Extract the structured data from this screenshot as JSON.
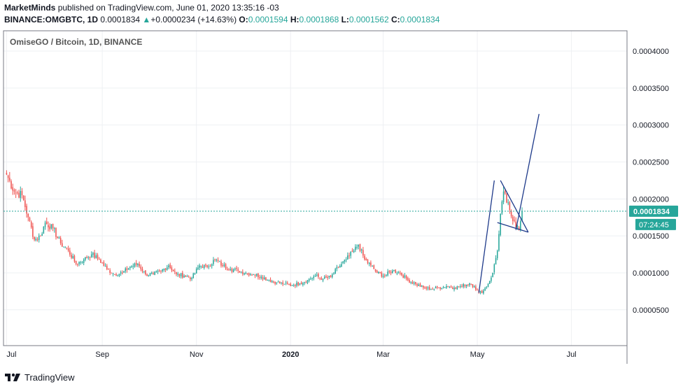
{
  "header": {
    "author": "MarketMinds",
    "published_text": "published on TradingView.com, June 01, 2020 13:35:16 -03",
    "symbol": "BINANCE:OMGBTC, 1D",
    "last": "0.0001834",
    "change_arrow": "▲",
    "change": "+0.0000234 (+14.63%)",
    "open_label": "O:",
    "open": "0.0001594",
    "high_label": "H:",
    "high": "0.0001868",
    "low_label": "L:",
    "low": "0.0001562",
    "close_label": "C:",
    "close": "0.0001834"
  },
  "footer": {
    "brand": "TradingView",
    "logo_icon": "tradingview-logo-icon"
  },
  "colors": {
    "up": "#26a69a",
    "down": "#ef5350",
    "price_tag": "#26a69a",
    "trendline": "#1e3a8a",
    "grid": "#eef0f3"
  },
  "chart_data": {
    "type": "candlestick",
    "title": "OmiseGO / Bitcoin, 1D, BINANCE",
    "x_ticks": [
      {
        "label": "Jul",
        "day": 0
      },
      {
        "label": "Sep",
        "day": 62
      },
      {
        "label": "Nov",
        "day": 123
      },
      {
        "label": "2020",
        "day": 184
      },
      {
        "label": "Mar",
        "day": 244
      },
      {
        "label": "May",
        "day": 305
      },
      {
        "label": "Jul",
        "day": 366
      }
    ],
    "y_ticks": [
      "0.0004000",
      "0.0003500",
      "0.0003000",
      "0.0002500",
      "0.0002000",
      "0.0001500",
      "0.0001000",
      "0.0000500"
    ],
    "y_tick_values": [
      0.0004,
      0.00035,
      0.0003,
      0.00025,
      0.0002,
      0.00015,
      0.0001,
      5e-05
    ],
    "ylim": [
      1.5e-06,
      0.0004275
    ],
    "xlim_days": [
      -2,
      402
    ],
    "last_price_label": "0.0001834",
    "last_price": 0.0001834,
    "countdown": "07:24:45",
    "series_close_keypoints": [
      {
        "day": 0,
        "close": 0.000233
      },
      {
        "day": 5,
        "close": 0.00021
      },
      {
        "day": 10,
        "close": 0.000205
      },
      {
        "day": 14,
        "close": 0.000175
      },
      {
        "day": 18,
        "close": 0.000145
      },
      {
        "day": 22,
        "close": 0.00015
      },
      {
        "day": 25,
        "close": 0.000168
      },
      {
        "day": 30,
        "close": 0.00016
      },
      {
        "day": 35,
        "close": 0.00014
      },
      {
        "day": 40,
        "close": 0.00013
      },
      {
        "day": 45,
        "close": 0.000112
      },
      {
        "day": 50,
        "close": 0.000118
      },
      {
        "day": 55,
        "close": 0.000125
      },
      {
        "day": 60,
        "close": 0.000118
      },
      {
        "day": 65,
        "close": 0.000105
      },
      {
        "day": 70,
        "close": 9.8e-05
      },
      {
        "day": 75,
        "close": 0.0001
      },
      {
        "day": 80,
        "close": 0.000108
      },
      {
        "day": 85,
        "close": 0.000112
      },
      {
        "day": 90,
        "close": 9.8e-05
      },
      {
        "day": 95,
        "close": 9.8e-05
      },
      {
        "day": 100,
        "close": 0.000102
      },
      {
        "day": 105,
        "close": 0.00011
      },
      {
        "day": 110,
        "close": 9.8e-05
      },
      {
        "day": 115,
        "close": 9.6e-05
      },
      {
        "day": 120,
        "close": 9.3e-05
      },
      {
        "day": 125,
        "close": 0.00011
      },
      {
        "day": 130,
        "close": 0.000108
      },
      {
        "day": 135,
        "close": 0.000118
      },
      {
        "day": 140,
        "close": 0.00011
      },
      {
        "day": 145,
        "close": 0.000105
      },
      {
        "day": 150,
        "close": 0.000103
      },
      {
        "day": 155,
        "close": 0.0001
      },
      {
        "day": 160,
        "close": 9.8e-05
      },
      {
        "day": 165,
        "close": 9.5e-05
      },
      {
        "day": 170,
        "close": 9e-05
      },
      {
        "day": 175,
        "close": 8.7e-05
      },
      {
        "day": 180,
        "close": 8.5e-05
      },
      {
        "day": 185,
        "close": 8.3e-05
      },
      {
        "day": 190,
        "close": 8.6e-05
      },
      {
        "day": 195,
        "close": 9e-05
      },
      {
        "day": 200,
        "close": 9.6e-05
      },
      {
        "day": 205,
        "close": 9.2e-05
      },
      {
        "day": 210,
        "close": 9.4e-05
      },
      {
        "day": 215,
        "close": 0.000108
      },
      {
        "day": 220,
        "close": 0.000118
      },
      {
        "day": 225,
        "close": 0.00013
      },
      {
        "day": 228,
        "close": 0.000138
      },
      {
        "day": 232,
        "close": 0.000118
      },
      {
        "day": 236,
        "close": 0.00011
      },
      {
        "day": 240,
        "close": 0.0001
      },
      {
        "day": 245,
        "close": 9.6e-05
      },
      {
        "day": 250,
        "close": 0.000103
      },
      {
        "day": 255,
        "close": 0.0001
      },
      {
        "day": 260,
        "close": 9e-05
      },
      {
        "day": 265,
        "close": 8.5e-05
      },
      {
        "day": 270,
        "close": 8e-05
      },
      {
        "day": 275,
        "close": 7.8e-05
      },
      {
        "day": 280,
        "close": 8e-05
      },
      {
        "day": 285,
        "close": 8.2e-05
      },
      {
        "day": 290,
        "close": 8e-05
      },
      {
        "day": 295,
        "close": 8.2e-05
      },
      {
        "day": 300,
        "close": 8.6e-05
      },
      {
        "day": 303,
        "close": 8.2e-05
      },
      {
        "day": 306,
        "close": 7.3e-05
      },
      {
        "day": 309,
        "close": 7.6e-05
      },
      {
        "day": 312,
        "close": 8.5e-05
      },
      {
        "day": 315,
        "close": 0.0001
      },
      {
        "day": 318,
        "close": 0.00013
      },
      {
        "day": 320,
        "close": 0.00018
      },
      {
        "day": 322,
        "close": 0.00021
      },
      {
        "day": 324,
        "close": 0.000195
      },
      {
        "day": 326,
        "close": 0.000185
      },
      {
        "day": 328,
        "close": 0.00017
      },
      {
        "day": 330,
        "close": 0.000162
      },
      {
        "day": 332,
        "close": 0.000158
      },
      {
        "day": 333,
        "close": 0.00017
      },
      {
        "day": 334,
        "close": 0.0001834
      }
    ],
    "trendlines": [
      {
        "from": {
          "day": 306,
          "price": 7.3e-05
        },
        "to": {
          "day": 316,
          "price": 0.000225
        }
      },
      {
        "from": {
          "day": 330,
          "price": 0.000158
        },
        "to": {
          "day": 345,
          "price": 0.000315
        }
      },
      {
        "from": {
          "day": 320,
          "price": 0.000225
        },
        "to": {
          "day": 338,
          "price": 0.000155
        }
      },
      {
        "from": {
          "day": 318,
          "price": 0.000168
        },
        "to": {
          "day": 338,
          "price": 0.000155
        }
      }
    ]
  }
}
